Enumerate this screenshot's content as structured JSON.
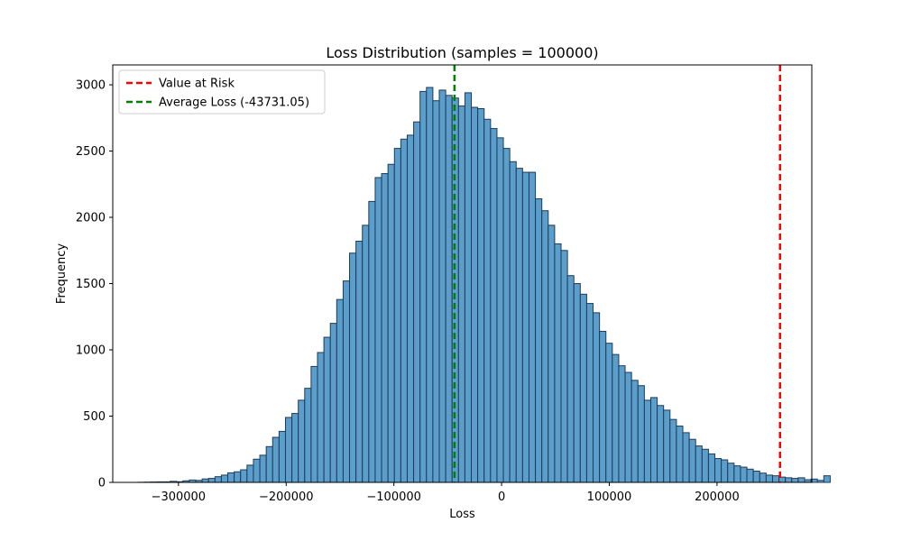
{
  "chart_data": {
    "type": "bar",
    "title": "Loss Distribution (samples = 100000)",
    "xlabel": "Loss",
    "ylabel": "Frequency",
    "xlim": [
      -361000,
      288000
    ],
    "ylim": [
      0,
      3150
    ],
    "xticks": [
      -300000,
      -200000,
      -100000,
      0,
      100000,
      200000
    ],
    "xtick_labels": [
      "−300000",
      "−200000",
      "−100000",
      "0",
      "100000",
      "200000"
    ],
    "yticks": [
      0,
      500,
      1000,
      1500,
      2000,
      2500,
      3000
    ],
    "ytick_labels": [
      "0",
      "500",
      "1000",
      "1500",
      "2000",
      "2500",
      "3000"
    ],
    "grid": false,
    "bin_start": -337500,
    "bin_width": 5950,
    "values": [
      1,
      2,
      3,
      4,
      4,
      8,
      5,
      12,
      18,
      15,
      26,
      30,
      43,
      55,
      72,
      80,
      95,
      130,
      175,
      205,
      270,
      340,
      385,
      490,
      520,
      620,
      710,
      875,
      980,
      1095,
      1200,
      1380,
      1520,
      1730,
      1820,
      1940,
      2120,
      2300,
      2330,
      2400,
      2520,
      2590,
      2620,
      2720,
      2950,
      2980,
      2880,
      2960,
      2920,
      2900,
      2840,
      2940,
      2830,
      2820,
      2740,
      2670,
      2600,
      2520,
      2420,
      2370,
      2340,
      2340,
      2140,
      2050,
      1940,
      1800,
      1750,
      1560,
      1500,
      1420,
      1350,
      1280,
      1140,
      1050,
      965,
      880,
      830,
      770,
      730,
      620,
      640,
      580,
      545,
      475,
      425,
      375,
      325,
      275,
      250,
      215,
      180,
      170,
      145,
      125,
      115,
      100,
      85,
      70,
      55,
      50,
      40,
      35,
      30,
      35,
      20,
      25,
      15,
      50
    ],
    "bar_color": "#5b9dcb",
    "bar_edge_color": "#1f3b57",
    "lines": [
      {
        "name": "Value at Risk",
        "x": 258500,
        "color": "#ff0000"
      },
      {
        "name": "Average Loss (-43731.05)",
        "x": -43731.05,
        "color": "#008000"
      }
    ],
    "legend_position": "top-left"
  }
}
